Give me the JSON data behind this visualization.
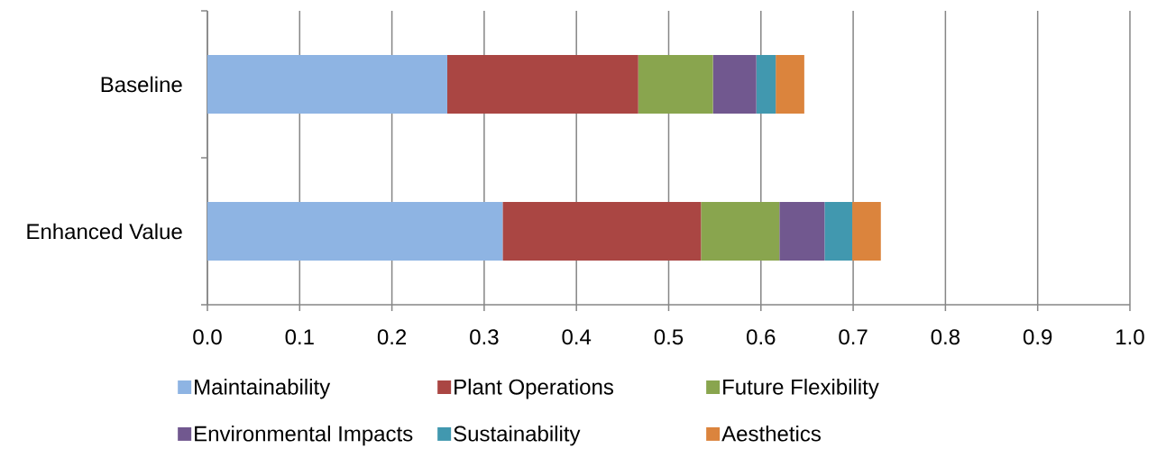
{
  "chart_data": {
    "type": "bar",
    "orientation": "horizontal",
    "stacked": true,
    "categories": [
      "Baseline",
      "Enhanced Value"
    ],
    "series": [
      {
        "name": "Maintainability",
        "color": "#8eb4e3",
        "values": [
          0.26,
          0.32
        ]
      },
      {
        "name": "Plant Operations",
        "color": "#aa4643",
        "values": [
          0.207,
          0.215
        ]
      },
      {
        "name": "Future Flexibility",
        "color": "#89a54e",
        "values": [
          0.081,
          0.085
        ]
      },
      {
        "name": "Environmental Impacts",
        "color": "#71588f",
        "values": [
          0.047,
          0.049
        ]
      },
      {
        "name": "Sustainability",
        "color": "#4198af",
        "values": [
          0.021,
          0.03
        ]
      },
      {
        "name": "Aesthetics",
        "color": "#db843d",
        "values": [
          0.031,
          0.031
        ]
      }
    ],
    "xlim": [
      0,
      1
    ],
    "xticks": [
      {
        "value": 0,
        "label": "0.0"
      },
      0.1,
      0.2,
      0.3,
      0.4,
      0.5,
      0.6,
      0.7,
      0.8,
      0.9,
      {
        "value": 1,
        "label": "1.0"
      }
    ],
    "grid": "x",
    "legend": "bottom"
  }
}
